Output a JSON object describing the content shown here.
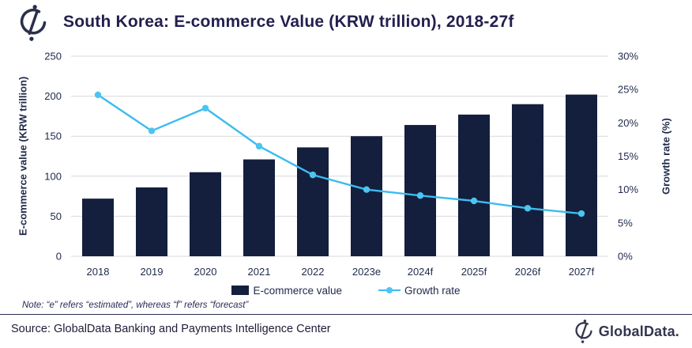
{
  "header": {
    "title": "South Korea: E-commerce Value (KRW trillion), 2018-27f"
  },
  "chart_data": {
    "type": "combo-bar-line",
    "categories": [
      "2018",
      "2019",
      "2020",
      "2021",
      "2022",
      "2023e",
      "2024f",
      "2025f",
      "2026f",
      "2027f"
    ],
    "series": [
      {
        "name": "E-commerce value",
        "type": "bar",
        "axis": "left",
        "values": [
          72,
          86,
          105,
          121,
          136,
          150,
          164,
          177,
          190,
          202
        ]
      },
      {
        "name": "Growth rate",
        "type": "line",
        "axis": "right",
        "values": [
          24.2,
          18.8,
          22.2,
          16.5,
          12.2,
          10.0,
          9.1,
          8.3,
          7.2,
          6.4
        ]
      }
    ],
    "left_axis": {
      "label": "E-commerce value (KRW trillion)",
      "min": 0,
      "max": 250,
      "step": 50,
      "ticks": [
        "0",
        "50",
        "100",
        "150",
        "200",
        "250"
      ]
    },
    "right_axis": {
      "label": "Growth rate (%)",
      "min": 0,
      "max": 30,
      "step": 5,
      "ticks": [
        "0%",
        "5%",
        "10%",
        "15%",
        "20%",
        "25%",
        "30%"
      ]
    },
    "grid": true,
    "legend_position": "bottom"
  },
  "note": "Note: “e” refers “estimated”, whereas “f” refers “forecast”",
  "footer": {
    "source": "Source: GlobalData Banking and Payments Intelligence Center",
    "brand": "GlobalData."
  },
  "colors": {
    "bar": "#131f3d",
    "line": "#3bbcee",
    "dot": "#4cc5f0",
    "grid": "#d9d9d9",
    "axis_text": "#1f2a4a",
    "title": "#221f4e"
  }
}
